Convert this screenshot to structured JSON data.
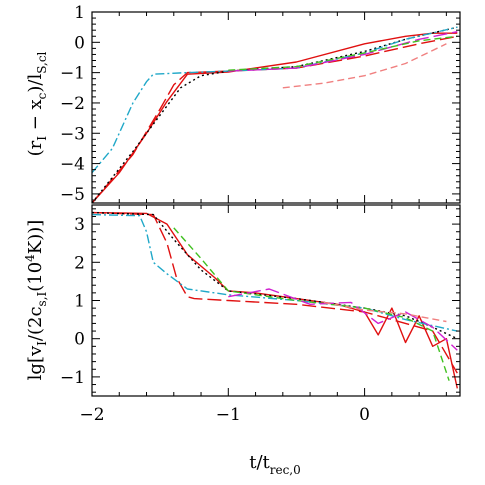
{
  "chart_data": [
    {
      "type": "line",
      "panel": "top",
      "ylabel": "(r_I − x_c)/l_S,cl",
      "ylabel_parts": [
        "(r",
        "I",
        " − x",
        "c",
        ")/l",
        "S,cl"
      ],
      "xlim": [
        -2,
        0.7
      ],
      "ylim": [
        -5.3,
        1.0
      ],
      "y_ticks": [
        -5,
        -4,
        -3,
        -2,
        -1,
        0,
        1
      ],
      "y_tick_labels": [
        "−5",
        "−4",
        "−3",
        "−2",
        "−1",
        "0",
        "1"
      ],
      "series": [
        {
          "color": "#e01010",
          "dash": "solid",
          "x": [
            -2.0,
            -1.8,
            -1.6,
            -1.45,
            -1.3,
            -1.0,
            -0.5,
            0.0,
            0.3,
            0.5,
            0.68
          ],
          "y": [
            -5.3,
            -4.3,
            -3.0,
            -1.95,
            -1.05,
            -0.98,
            -0.65,
            -0.05,
            0.2,
            0.3,
            0.3
          ]
        },
        {
          "color": "#e01010",
          "dash": "longdash",
          "x": [
            -2.0,
            -1.7,
            -1.5,
            -1.4,
            -1.3,
            -1.0,
            -0.5,
            0.0,
            0.4,
            0.68
          ],
          "y": [
            -5.3,
            -3.7,
            -2.2,
            -1.4,
            -1.0,
            -0.95,
            -0.85,
            -0.45,
            -0.05,
            0.2
          ]
        },
        {
          "color": "#000000",
          "dash": "dotted",
          "x": [
            -2.0,
            -1.7,
            -1.5,
            -1.35,
            -1.2,
            -1.0,
            -0.5,
            0.0,
            0.3,
            0.68
          ],
          "y": [
            -5.3,
            -3.6,
            -2.4,
            -1.5,
            -1.1,
            -0.95,
            -0.8,
            -0.3,
            0.1,
            0.5
          ]
        },
        {
          "color": "#20a8c8",
          "dash": "dashdot",
          "x": [
            -2.0,
            -1.85,
            -1.7,
            -1.6,
            -1.55,
            -1.3,
            -1.0,
            -0.5,
            0.0,
            0.3,
            0.68
          ],
          "y": [
            -4.3,
            -3.5,
            -2.0,
            -1.3,
            -1.05,
            -1.0,
            -0.95,
            -0.85,
            -0.35,
            0.1,
            0.5
          ]
        },
        {
          "color": "#d020d0",
          "dash": "longdash",
          "x": [
            -1.0,
            -0.5,
            0.0,
            0.4,
            0.68
          ],
          "y": [
            -0.95,
            -0.85,
            -0.4,
            0.1,
            0.35
          ]
        },
        {
          "color": "#40c020",
          "dash": "dashed",
          "x": [
            -1.0,
            -0.5,
            0.0,
            0.4,
            0.68
          ],
          "y": [
            -0.92,
            -0.8,
            -0.35,
            0.05,
            0.2
          ]
        },
        {
          "color": "#f08080",
          "dash": "dashed",
          "x": [
            -0.6,
            -0.3,
            0.0,
            0.3,
            0.6
          ],
          "y": [
            -1.5,
            -1.35,
            -1.1,
            -0.7,
            -0.05
          ]
        }
      ]
    },
    {
      "type": "line",
      "panel": "bottom",
      "xlabel": "t/t_rec,0",
      "xlabel_parts": [
        "t/t",
        "rec,0"
      ],
      "ylabel": "lg[v_I/(2c_s,I(10^4K))]",
      "ylabel_parts": [
        "lg[v",
        "I",
        "/(2c",
        "s,I",
        "(10",
        "4",
        "K))]"
      ],
      "xlim": [
        -2,
        0.7
      ],
      "ylim": [
        -1.5,
        3.5
      ],
      "x_ticks": [
        -2,
        -1,
        0
      ],
      "x_tick_labels": [
        "−2",
        "−1",
        "0"
      ],
      "y_ticks": [
        -1,
        0,
        1,
        2,
        3
      ],
      "y_tick_labels": [
        "−1",
        "0",
        "1",
        "2",
        "3"
      ],
      "series": [
        {
          "color": "#e01010",
          "dash": "solid",
          "x": [
            -2.0,
            -1.6,
            -1.45,
            -1.3,
            -1.1,
            -1.0,
            -0.8,
            -0.5,
            -0.2,
            0.0,
            0.1,
            0.2,
            0.3,
            0.4,
            0.5,
            0.6,
            0.68
          ],
          "y": [
            3.3,
            3.28,
            3.0,
            2.2,
            1.6,
            1.25,
            1.2,
            1.05,
            0.9,
            0.7,
            0.1,
            0.8,
            -0.1,
            0.6,
            -0.2,
            0.0,
            -1.3
          ]
        },
        {
          "color": "#e01010",
          "dash": "longdash",
          "x": [
            -2.0,
            -1.55,
            -1.45,
            -1.38,
            -1.3,
            -1.25,
            -1.0,
            -0.5,
            0.0,
            0.3,
            0.5,
            0.68
          ],
          "y": [
            3.3,
            3.25,
            2.5,
            1.6,
            1.1,
            1.05,
            1.0,
            0.9,
            0.7,
            0.4,
            0.2,
            -0.9
          ]
        },
        {
          "color": "#000000",
          "dash": "dotted",
          "x": [
            -2.0,
            -1.55,
            -1.4,
            -1.2,
            -1.0,
            -0.5,
            0.0,
            0.3,
            0.5,
            0.68
          ],
          "y": [
            3.3,
            3.25,
            2.6,
            1.8,
            1.25,
            1.05,
            0.8,
            0.6,
            0.3,
            0.0
          ]
        },
        {
          "color": "#20a8c8",
          "dash": "dashdot",
          "x": [
            -2.0,
            -1.65,
            -1.6,
            -1.55,
            -1.45,
            -1.3,
            -1.0,
            -0.5,
            0.0,
            0.3,
            0.68
          ],
          "y": [
            3.25,
            3.22,
            2.8,
            2.0,
            1.7,
            1.3,
            1.15,
            1.0,
            0.8,
            0.5,
            0.2
          ]
        },
        {
          "color": "#40c020",
          "dash": "dashed",
          "x": [
            -1.4,
            -1.2,
            -1.0,
            -0.5,
            0.0,
            0.3,
            0.5,
            0.62
          ],
          "y": [
            2.9,
            2.1,
            1.25,
            1.0,
            0.8,
            0.55,
            0.2,
            -1.1
          ]
        },
        {
          "color": "#d020d0",
          "dash": "longdash",
          "x": [
            -1.0,
            -0.7,
            -0.4,
            -0.1,
            0.1,
            0.3,
            0.5,
            0.68
          ],
          "y": [
            1.1,
            1.3,
            0.9,
            0.95,
            0.4,
            0.7,
            0.3,
            -0.3
          ]
        },
        {
          "color": "#f08080",
          "dash": "dashed",
          "x": [
            -0.3,
            0.0,
            0.3,
            0.6
          ],
          "y": [
            0.95,
            0.75,
            0.65,
            0.45
          ]
        }
      ]
    }
  ]
}
